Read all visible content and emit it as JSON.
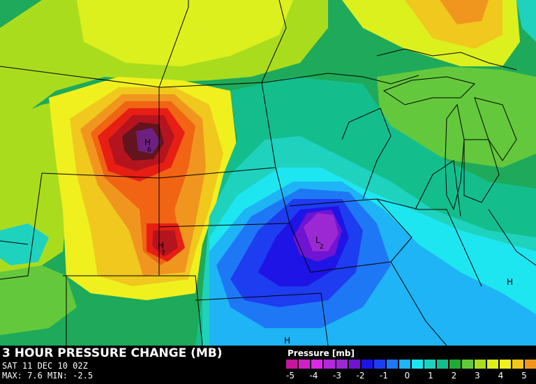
{
  "header": {
    "title": "3 HOUR PRESSURE CHANGE (MB)",
    "valid_time": "SAT 11 DEC 10 02Z",
    "stats": "MAX: 7.6 MIN: -2.5"
  },
  "legend": {
    "title": "Pressure [mb]",
    "colors": [
      "#c8149b",
      "#d21ec8",
      "#dc28e6",
      "#b428dc",
      "#9b28d2",
      "#6e14d2",
      "#1e14e6",
      "#1e3cf0",
      "#1e78f5",
      "#1eb4f5",
      "#1ee6f0",
      "#1ed2be",
      "#14be8c",
      "#1eaa32",
      "#64c83c",
      "#aadc1e",
      "#dcf01e",
      "#f0f01e",
      "#f0c81e",
      "#f0961e",
      "#f06414",
      "#e61e14"
    ],
    "ticks": [
      "-5",
      "-4",
      "-3",
      "-2",
      "-1",
      "0",
      "1",
      "2",
      "3",
      "4",
      "5"
    ]
  },
  "map": {
    "markers": [
      {
        "kind": "H",
        "value": "6"
      },
      {
        "kind": "H",
        "value": "7"
      },
      {
        "kind": "L",
        "value": "2"
      },
      {
        "kind": "H",
        "value": ""
      },
      {
        "kind": "H",
        "value": ""
      }
    ]
  }
}
